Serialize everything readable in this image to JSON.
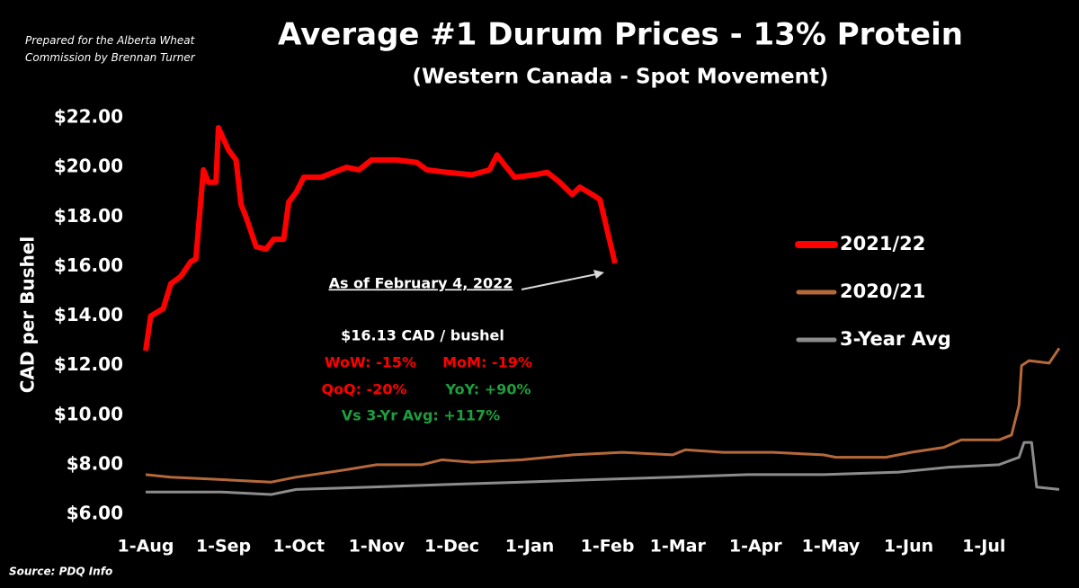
{
  "chart_data": {
    "type": "line",
    "title": "Average #1 Durum Prices - 13% Protein",
    "subtitle": "(Western Canada - Spot Movement)",
    "note": "Prepared for the Alberta Wheat Commission by Brennan Turner",
    "source": "Source: PDQ Info",
    "y_label": "CAD per Bushel",
    "ylim": [
      6,
      22
    ],
    "yticks": [
      {
        "value": 6,
        "label": "$6.00"
      },
      {
        "value": 8,
        "label": "$8.00"
      },
      {
        "value": 10,
        "label": "$10.00"
      },
      {
        "value": 12,
        "label": "$12.00"
      },
      {
        "value": 14,
        "label": "$14.00"
      },
      {
        "value": 16,
        "label": "$16.00"
      },
      {
        "value": 18,
        "label": "$18.00"
      },
      {
        "value": 20,
        "label": "$20.00"
      },
      {
        "value": 22,
        "label": "$22.00"
      }
    ],
    "xlim": [
      0,
      364
    ],
    "xticks": [
      {
        "value": 0,
        "label": "1-Aug"
      },
      {
        "value": 31,
        "label": "1-Sep"
      },
      {
        "value": 61,
        "label": "1-Oct"
      },
      {
        "value": 92,
        "label": "1-Nov"
      },
      {
        "value": 122,
        "label": "1-Dec"
      },
      {
        "value": 153,
        "label": "1-Jan"
      },
      {
        "value": 184,
        "label": "1-Feb"
      },
      {
        "value": 212,
        "label": "1-Mar"
      },
      {
        "value": 243,
        "label": "1-Apr"
      },
      {
        "value": 273,
        "label": "1-May"
      },
      {
        "value": 304,
        "label": "1-Jun"
      },
      {
        "value": 334,
        "label": "1-Jul"
      }
    ],
    "legend": "right",
    "series": [
      {
        "name": "2021/22",
        "color": "#ff0000",
        "width": 6,
        "x": [
          0,
          2,
          7,
          10,
          14,
          18,
          20,
          23,
          25,
          28,
          29,
          33,
          36,
          38,
          40,
          44,
          48,
          51,
          55,
          57,
          60,
          63,
          70,
          75,
          80,
          85,
          90,
          100,
          108,
          112,
          120,
          130,
          137,
          140,
          143,
          147,
          155,
          160,
          165,
          170,
          173,
          178,
          181,
          187
        ],
        "values": [
          12.6,
          14.0,
          14.3,
          15.3,
          15.6,
          16.2,
          16.3,
          19.9,
          19.4,
          19.4,
          21.6,
          20.7,
          20.3,
          18.5,
          18.0,
          16.8,
          16.7,
          17.1,
          17.1,
          18.6,
          19.0,
          19.6,
          19.6,
          19.8,
          20.0,
          19.9,
          20.3,
          20.3,
          20.2,
          19.9,
          19.8,
          19.7,
          19.9,
          20.5,
          20.1,
          19.6,
          19.7,
          19.8,
          19.4,
          18.9,
          19.2,
          18.9,
          18.7,
          16.13
        ]
      },
      {
        "name": "2020/21",
        "color": "#b5693a",
        "width": 3,
        "x": [
          0,
          10,
          30,
          50,
          60,
          80,
          92,
          110,
          118,
          130,
          150,
          170,
          190,
          210,
          215,
          230,
          250,
          270,
          275,
          295,
          305,
          318,
          325,
          340,
          345,
          348,
          349,
          352,
          360,
          364
        ],
        "values": [
          7.6,
          7.5,
          7.4,
          7.3,
          7.5,
          7.8,
          8.0,
          8.0,
          8.2,
          8.1,
          8.2,
          8.4,
          8.5,
          8.4,
          8.6,
          8.5,
          8.5,
          8.4,
          8.3,
          8.3,
          8.5,
          8.7,
          9.0,
          9.0,
          9.2,
          10.4,
          12.0,
          12.2,
          12.1,
          12.7
        ]
      },
      {
        "name": "3-Year Avg",
        "color": "#8c8c8c",
        "width": 3,
        "x": [
          0,
          30,
          50,
          60,
          90,
          120,
          150,
          180,
          210,
          240,
          270,
          300,
          320,
          340,
          348,
          350,
          353,
          355,
          364
        ],
        "values": [
          6.9,
          6.9,
          6.8,
          7.0,
          7.1,
          7.2,
          7.3,
          7.4,
          7.5,
          7.6,
          7.6,
          7.7,
          7.9,
          8.0,
          8.3,
          8.9,
          8.9,
          7.1,
          7.0
        ]
      }
    ],
    "annotations": [
      {
        "text": "As of February 4, 2022",
        "color": "#ffffff"
      },
      {
        "text": "$16.13 CAD / bushel",
        "color": "#ffffff"
      },
      {
        "text": "WoW: -15%",
        "color": "#ff0000"
      },
      {
        "text": "MoM: -19%",
        "color": "#ff0000"
      },
      {
        "text": "QoQ: -20%",
        "color": "#ff0000"
      },
      {
        "text": "YoY: +90%",
        "color": "#1e9e3e"
      },
      {
        "text": "Vs 3-Yr Avg: +117%",
        "color": "#1e9e3e"
      }
    ]
  }
}
